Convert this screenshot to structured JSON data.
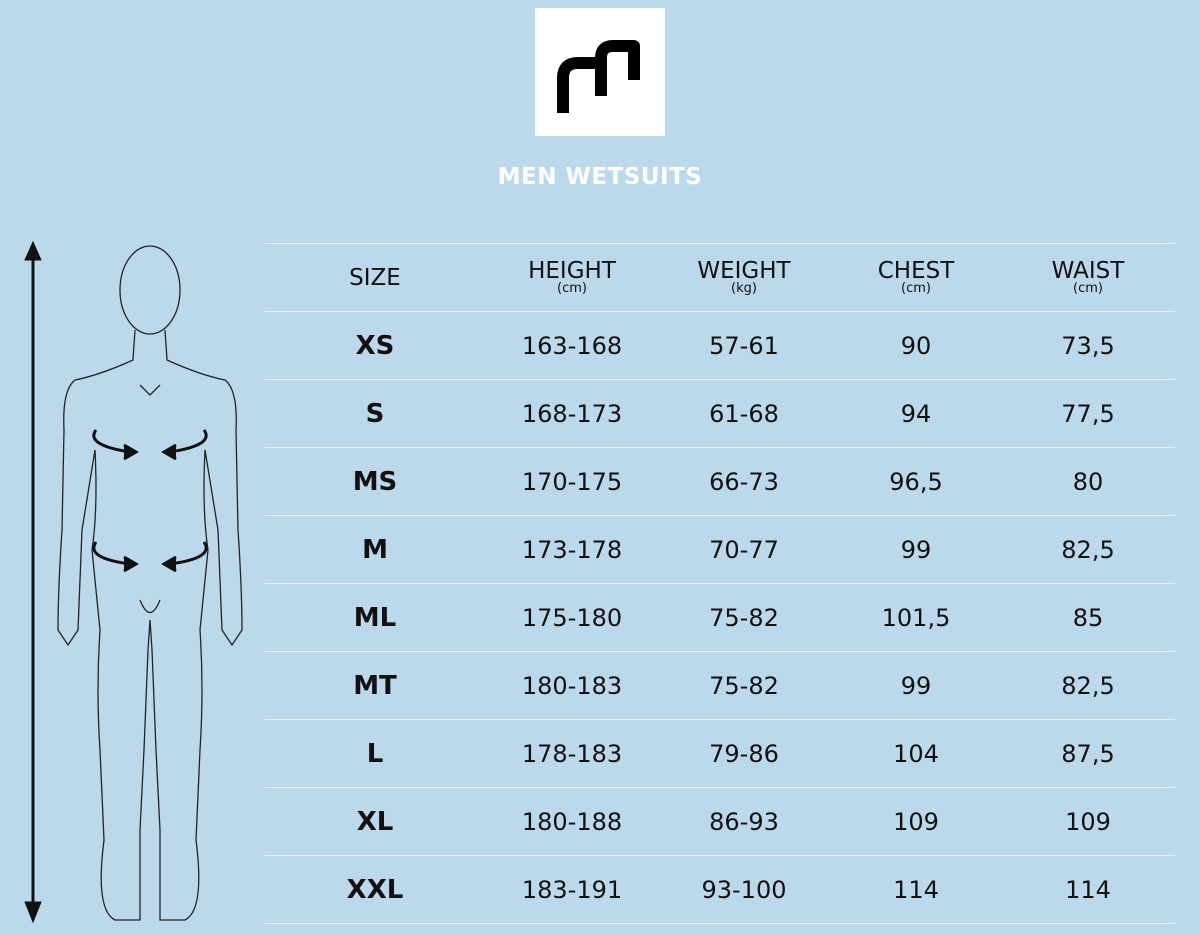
{
  "logo": {
    "text": "m",
    "background": "#ffffff",
    "color": "#000000"
  },
  "title": "MEN WETSUITS",
  "table": {
    "headers": [
      {
        "label": "SIZE",
        "unit": ""
      },
      {
        "label": "HEIGHT",
        "unit": "(cm)"
      },
      {
        "label": "WEIGHT",
        "unit": "(kg)"
      },
      {
        "label": "CHEST",
        "unit": "(cm)"
      },
      {
        "label": "WAIST",
        "unit": "(cm)"
      }
    ],
    "rows": [
      [
        "XS",
        "163-168",
        "57-61",
        "90",
        "73,5"
      ],
      [
        "S",
        "168-173",
        "61-68",
        "94",
        "77,5"
      ],
      [
        "MS",
        "170-175",
        "66-73",
        "96,5",
        "80"
      ],
      [
        "M",
        "173-178",
        "70-77",
        "99",
        "82,5"
      ],
      [
        "ML",
        "175-180",
        "75-82",
        "101,5",
        "85"
      ],
      [
        "MT",
        "180-183",
        "75-82",
        "99",
        "82,5"
      ],
      [
        "L",
        "178-183",
        "79-86",
        "104",
        "87,5"
      ],
      [
        "XL",
        "180-188",
        "86-93",
        "109",
        "109"
      ],
      [
        "XXL",
        "183-191",
        "93-100",
        "114",
        "114"
      ]
    ]
  },
  "colors": {
    "background": "#bcd9ec",
    "title": "#ffffff",
    "divider": "#e8f2fa"
  }
}
